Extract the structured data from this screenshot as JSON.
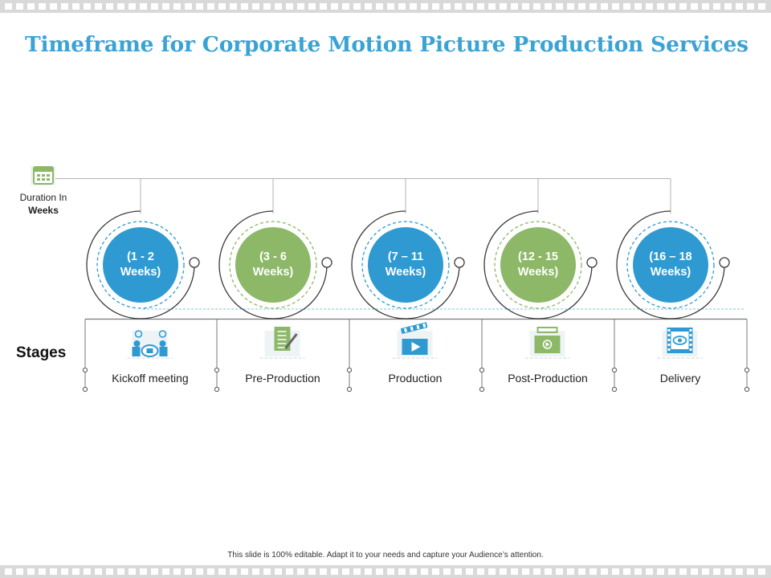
{
  "slide": {
    "title": "Timeframe for Corporate Motion Picture Production Services",
    "duration_label_line1": "Duration In",
    "duration_label_line2": "Weeks",
    "stages_heading": "Stages",
    "footer": "This slide is 100% editable.  Adapt it to your needs and capture your Audience’s attention."
  },
  "phases": [
    {
      "weeks_line1": "(1 - 2",
      "weeks_line2": "Weeks)",
      "stage": "Kickoff meeting",
      "color": "#2f9ad1",
      "icon": "meeting-icon"
    },
    {
      "weeks_line1": "(3 - 6",
      "weeks_line2": "Weeks)",
      "stage": "Pre-Production",
      "color": "#8cb868",
      "icon": "script-writing-icon"
    },
    {
      "weeks_line1": "(7 – 11",
      "weeks_line2": "Weeks)",
      "stage": "Production",
      "color": "#2f9ad1",
      "icon": "clapperboard-icon"
    },
    {
      "weeks_line1": "(12 - 15",
      "weeks_line2": "Weeks)",
      "stage": "Post-Production",
      "color": "#8cb868",
      "icon": "video-editing-icon"
    },
    {
      "weeks_line1": "(16 – 18",
      "weeks_line2": "Weeks)",
      "stage": "Delivery",
      "color": "#2f9ad1",
      "icon": "film-delivery-icon"
    }
  ],
  "colors": {
    "title": "#3aa3d4",
    "blue": "#2f9ad1",
    "green": "#8cb868",
    "line": "#9a9a9a"
  }
}
